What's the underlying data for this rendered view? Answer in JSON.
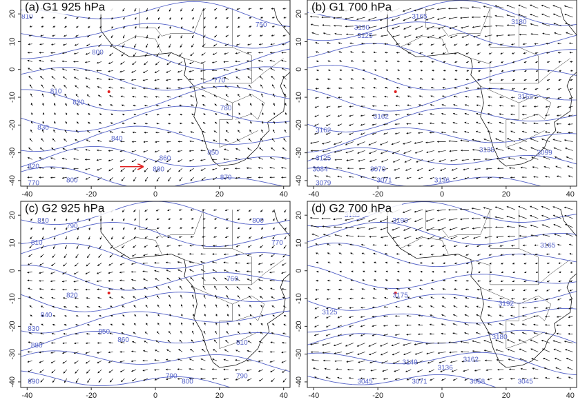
{
  "axes": {
    "xlim": [
      -42,
      42
    ],
    "ylim": [
      -42,
      25
    ],
    "xticks": [
      -40,
      -20,
      0,
      20,
      40
    ],
    "yticks": [
      20,
      10,
      0,
      -10,
      -20,
      -30,
      -40
    ]
  },
  "panels": [
    {
      "title": "(a) G1 925 hPa",
      "contour_labels": [
        "810",
        "750",
        "800",
        "770",
        "810",
        "820",
        "780",
        "830",
        "840",
        "860",
        "850",
        "880",
        "870",
        "820",
        "800",
        "770"
      ]
    },
    {
      "title": "(b) G1 700 hPa",
      "contour_labels": [
        "3190",
        "3165",
        "3180",
        "3125",
        "3162",
        "3162",
        "3165",
        "3125",
        "3084",
        "3070",
        "3079",
        "3071",
        "3136",
        "3135",
        "3099"
      ]
    },
    {
      "title": "(c) G2 925 hPa",
      "contour_labels": [
        "810",
        "790",
        "800",
        "770",
        "810",
        "820",
        "760",
        "840",
        "850",
        "860",
        "830",
        "880",
        "810",
        "790",
        "800",
        "790",
        "890"
      ]
    },
    {
      "title": "(d) G2 700 hPa",
      "contour_labels": [
        "3185",
        "3190",
        "3165",
        "3175",
        "3125",
        "3192",
        "3180",
        "3149",
        "3136",
        "3162",
        "3045",
        "3071",
        "3058",
        "3045"
      ]
    }
  ]
}
